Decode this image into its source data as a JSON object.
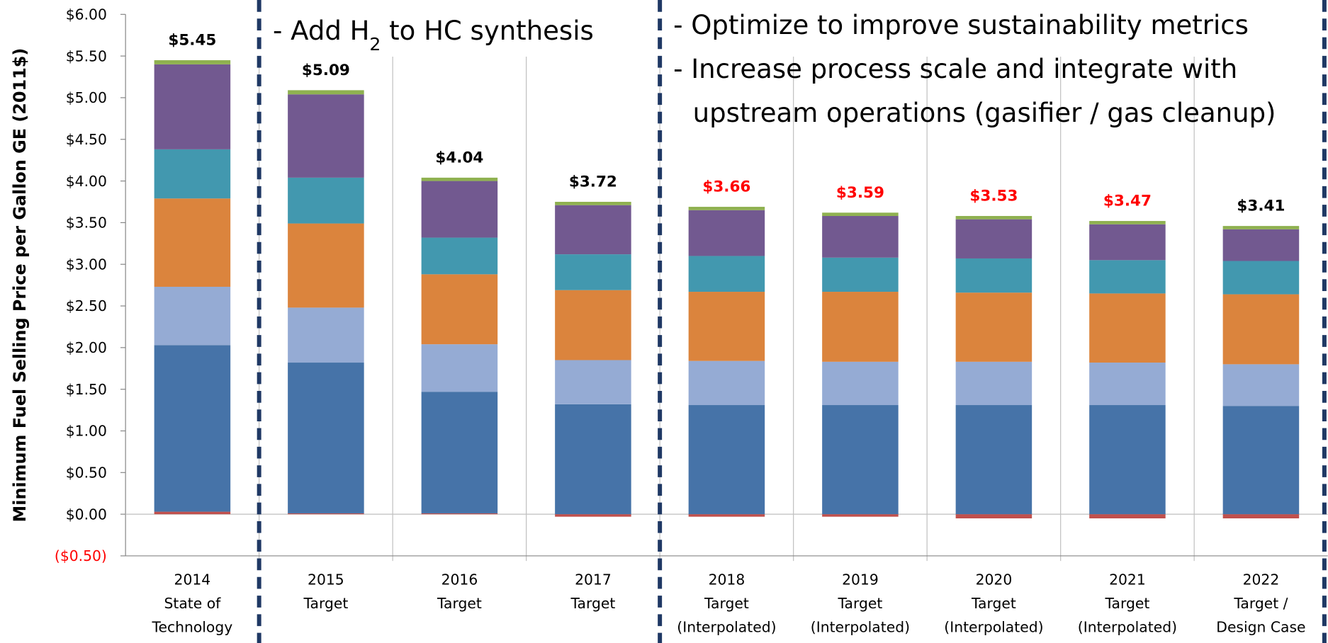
{
  "chart_data": {
    "type": "stacked_bar",
    "y_label": "Minimum Fuel Selling Price per Gallon GE (2011$)",
    "categories": [
      [
        "2014",
        "State of",
        "Technology"
      ],
      [
        "2015",
        "Target"
      ],
      [
        "2016",
        "Target"
      ],
      [
        "2017",
        "Target"
      ],
      [
        "2018",
        "Target",
        "(Interpolated)"
      ],
      [
        "2019",
        "Target",
        "(Interpolated)"
      ],
      [
        "2020",
        "Target",
        "(Interpolated)"
      ],
      [
        "2021",
        "Target",
        "(Interpolated)"
      ],
      [
        "2022",
        "Target /",
        "Design Case"
      ]
    ],
    "series": [
      {
        "color": "#c0504d",
        "values": [
          0.03,
          0.01,
          0.01,
          -0.03,
          -0.03,
          -0.03,
          -0.05,
          -0.05,
          -0.05
        ]
      },
      {
        "color": "#4673a8",
        "values": [
          2.0,
          1.81,
          1.46,
          1.32,
          1.31,
          1.31,
          1.31,
          1.31,
          1.3
        ]
      },
      {
        "color": "#95abd4",
        "values": [
          0.7,
          0.66,
          0.57,
          0.53,
          0.53,
          0.52,
          0.52,
          0.51,
          0.5
        ]
      },
      {
        "color": "#db843d",
        "values": [
          1.06,
          1.01,
          0.84,
          0.84,
          0.83,
          0.84,
          0.83,
          0.83,
          0.84
        ]
      },
      {
        "color": "#4298af",
        "values": [
          0.59,
          0.55,
          0.44,
          0.43,
          0.43,
          0.41,
          0.41,
          0.4,
          0.4
        ]
      },
      {
        "color": "#725990",
        "values": [
          1.02,
          1.0,
          0.68,
          0.59,
          0.55,
          0.5,
          0.47,
          0.43,
          0.38
        ]
      },
      {
        "color": "#8fb150",
        "values": [
          0.05,
          0.05,
          0.04,
          0.04,
          0.04,
          0.04,
          0.04,
          0.04,
          0.04
        ]
      }
    ],
    "total_labels": [
      "$5.45",
      "$5.09",
      "$4.04",
      "$3.72",
      "$3.66",
      "$3.59",
      "$3.53",
      "$3.47",
      "$3.41"
    ],
    "total_label_colors": [
      "#000000",
      "#000000",
      "#000000",
      "#000000",
      "#ff0000",
      "#ff0000",
      "#ff0000",
      "#ff0000",
      "#000000"
    ],
    "ylim": [
      -0.5,
      6.0
    ],
    "yticks": [
      {
        "value": -0.5,
        "label": "($0.50)"
      },
      {
        "value": 0,
        "label": "$0.00"
      },
      {
        "value": 0.5,
        "label": "$0.50"
      },
      {
        "value": 1.0,
        "label": "$1.00"
      },
      {
        "value": 1.5,
        "label": "$1.50"
      },
      {
        "value": 2.0,
        "label": "$2.00"
      },
      {
        "value": 2.5,
        "label": "$2.50"
      },
      {
        "value": 3.0,
        "label": "$3.00"
      },
      {
        "value": 3.5,
        "label": "$3.50"
      },
      {
        "value": 4.0,
        "label": "$4.00"
      },
      {
        "value": 4.5,
        "label": "$4.50"
      },
      {
        "value": 5.0,
        "label": "$5.00"
      },
      {
        "value": 5.5,
        "label": "$5.50"
      },
      {
        "value": 6.0,
        "label": "$6.00"
      }
    ],
    "negative_tick_color": "#ff0000",
    "section_dividers": [
      1,
      4,
      9
    ],
    "annotations": [
      {
        "parts": [
          "- Add H",
          "2",
          " to HC synthesis"
        ]
      },
      {
        "lines": [
          "- Optimize to improve sustainability metrics",
          "- Increase process scale and integrate with",
          "upstream operations (gasifier / gas cleanup)"
        ]
      }
    ]
  }
}
